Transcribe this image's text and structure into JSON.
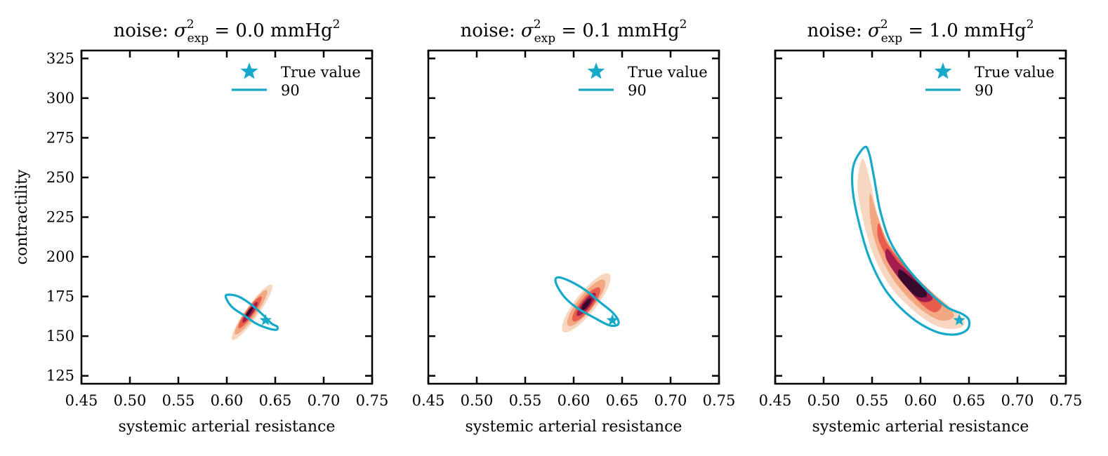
{
  "chart_data": [
    {
      "type": "contour",
      "title_prefix": "noise: ",
      "title_symbol": "σ",
      "title_sup": "2",
      "title_sub": "exp",
      "title_mid": " = 0.0 mmHg",
      "title_unit_sup": "2",
      "xlabel": "systemic arterial resistance",
      "ylabel": "contractility",
      "xlim": [
        0.45,
        0.75
      ],
      "ylim": [
        120,
        330
      ],
      "xticks": [
        "0.45",
        "0.50",
        "0.55",
        "0.60",
        "0.65",
        "0.70",
        "0.75"
      ],
      "yticks": [
        "125",
        "150",
        "175",
        "200",
        "225",
        "250",
        "275",
        "300",
        "325"
      ],
      "legend": {
        "placement": "top-right",
        "entries": [
          "True value",
          "90"
        ]
      },
      "true_value": {
        "x": 0.64,
        "y": 160
      },
      "hdr_90_outline": [
        [
          0.6,
          176
        ],
        [
          0.612,
          175
        ],
        [
          0.625,
          170
        ],
        [
          0.638,
          163
        ],
        [
          0.646,
          158
        ],
        [
          0.652,
          156
        ],
        [
          0.651,
          154
        ],
        [
          0.642,
          155
        ],
        [
          0.63,
          158
        ],
        [
          0.618,
          163
        ],
        [
          0.606,
          168
        ],
        [
          0.6,
          173
        ]
      ],
      "levels": [
        {
          "color": "#f7d7c2",
          "cx": 0.626,
          "cy": 165,
          "a": 0.035,
          "b": 4,
          "angle": -0.95
        },
        {
          "color": "#f3a882",
          "cx": 0.625,
          "cy": 165,
          "a": 0.028,
          "b": 3.2,
          "angle": -0.95
        },
        {
          "color": "#e85d4b",
          "cx": 0.624,
          "cy": 165,
          "a": 0.02,
          "b": 2.4,
          "angle": -0.95
        },
        {
          "color": "#a51d4f",
          "cx": 0.624,
          "cy": 165,
          "a": 0.013,
          "b": 1.6,
          "angle": -0.95
        },
        {
          "color": "#3a0a2e",
          "cx": 0.623,
          "cy": 165,
          "a": 0.007,
          "b": 1.0,
          "angle": -0.95
        }
      ]
    },
    {
      "type": "contour",
      "title_prefix": "noise: ",
      "title_symbol": "σ",
      "title_sup": "2",
      "title_sub": "exp",
      "title_mid": " = 0.1 mmHg",
      "title_unit_sup": "2",
      "xlabel": "systemic arterial resistance",
      "ylabel": "",
      "xlim": [
        0.45,
        0.75
      ],
      "ylim": [
        120,
        330
      ],
      "xticks": [
        "0.45",
        "0.50",
        "0.55",
        "0.60",
        "0.65",
        "0.70",
        "0.75"
      ],
      "yticks": [],
      "legend": {
        "placement": "top-right",
        "entries": [
          "True value",
          "90"
        ]
      },
      "true_value": {
        "x": 0.64,
        "y": 160
      },
      "hdr_90_outline": [
        [
          0.583,
          187
        ],
        [
          0.595,
          185
        ],
        [
          0.612,
          179
        ],
        [
          0.628,
          171
        ],
        [
          0.64,
          165
        ],
        [
          0.646,
          160
        ],
        [
          0.645,
          157
        ],
        [
          0.636,
          157
        ],
        [
          0.62,
          162
        ],
        [
          0.603,
          168
        ],
        [
          0.59,
          175
        ],
        [
          0.582,
          183
        ]
      ],
      "levels": [
        {
          "color": "#f7d7c2",
          "cx": 0.613,
          "cy": 171,
          "a": 0.038,
          "b": 6.5,
          "angle": -0.9
        },
        {
          "color": "#f3a882",
          "cx": 0.613,
          "cy": 171,
          "a": 0.03,
          "b": 5.0,
          "angle": -0.9
        },
        {
          "color": "#e85d4b",
          "cx": 0.613,
          "cy": 170,
          "a": 0.022,
          "b": 3.8,
          "angle": -0.9
        },
        {
          "color": "#a51d4f",
          "cx": 0.613,
          "cy": 170,
          "a": 0.015,
          "b": 2.6,
          "angle": -0.9
        },
        {
          "color": "#3a0a2e",
          "cx": 0.613,
          "cy": 170,
          "a": 0.008,
          "b": 1.5,
          "angle": -0.9
        }
      ]
    },
    {
      "type": "contour",
      "title_prefix": "noise: ",
      "title_symbol": "σ",
      "title_sup": "2",
      "title_sub": "exp",
      "title_mid": " = 1.0 mmHg",
      "title_unit_sup": "2",
      "xlabel": "systemic arterial resistance",
      "ylabel": "",
      "xlim": [
        0.45,
        0.75
      ],
      "ylim": [
        120,
        330
      ],
      "xticks": [
        "0.45",
        "0.50",
        "0.55",
        "0.60",
        "0.65",
        "0.70",
        "0.75"
      ],
      "yticks": [],
      "legend": {
        "placement": "top-right",
        "entries": [
          "True value",
          "90"
        ]
      },
      "true_value": {
        "x": 0.64,
        "y": 160
      },
      "hdr_90_outline": [
        [
          0.542,
          269
        ],
        [
          0.547,
          265
        ],
        [
          0.552,
          250
        ],
        [
          0.558,
          230
        ],
        [
          0.567,
          212
        ],
        [
          0.578,
          200
        ],
        [
          0.593,
          188
        ],
        [
          0.61,
          177
        ],
        [
          0.628,
          168
        ],
        [
          0.643,
          164
        ],
        [
          0.65,
          160
        ],
        [
          0.648,
          154
        ],
        [
          0.635,
          151
        ],
        [
          0.615,
          153
        ],
        [
          0.59,
          162
        ],
        [
          0.565,
          178
        ],
        [
          0.548,
          198
        ],
        [
          0.537,
          220
        ],
        [
          0.53,
          242
        ],
        [
          0.531,
          258
        ]
      ],
      "levels": [
        {
          "color": "#f7d7c2",
          "path": [
            [
              0.54,
              262
            ],
            [
              0.548,
              248
            ],
            [
              0.555,
              228
            ],
            [
              0.566,
              210
            ],
            [
              0.58,
              197
            ],
            [
              0.598,
              185
            ],
            [
              0.617,
              174
            ],
            [
              0.635,
              166
            ],
            [
              0.645,
              160
            ],
            [
              0.64,
              155
            ],
            [
              0.618,
              156
            ],
            [
              0.593,
              166
            ],
            [
              0.568,
              182
            ],
            [
              0.551,
              202
            ],
            [
              0.54,
              225
            ],
            [
              0.535,
              245
            ]
          ]
        },
        {
          "color": "#f3a882",
          "path": [
            [
              0.548,
              240
            ],
            [
              0.556,
              225
            ],
            [
              0.566,
              210
            ],
            [
              0.58,
              198
            ],
            [
              0.598,
              186
            ],
            [
              0.615,
              176
            ],
            [
              0.63,
              168
            ],
            [
              0.634,
              162
            ],
            [
              0.62,
              160
            ],
            [
              0.598,
              168
            ],
            [
              0.575,
              183
            ],
            [
              0.559,
              200
            ],
            [
              0.549,
              220
            ]
          ]
        },
        {
          "color": "#e85d4b",
          "path": [
            [
              0.557,
              221
            ],
            [
              0.565,
              209
            ],
            [
              0.58,
              197
            ],
            [
              0.597,
              186
            ],
            [
              0.612,
              177
            ],
            [
              0.622,
              170
            ],
            [
              0.614,
              165
            ],
            [
              0.598,
              172
            ],
            [
              0.58,
              186
            ],
            [
              0.565,
              200
            ],
            [
              0.556,
              212
            ]
          ]
        },
        {
          "color": "#a51d4f",
          "path": [
            [
              0.566,
              205
            ],
            [
              0.578,
              196
            ],
            [
              0.594,
              187
            ],
            [
              0.608,
              179
            ],
            [
              0.612,
              173
            ],
            [
              0.6,
              172
            ],
            [
              0.585,
              181
            ],
            [
              0.571,
              192
            ],
            [
              0.564,
              200
            ]
          ]
        },
        {
          "color": "#3a0a2e",
          "path": [
            [
              0.579,
              192
            ],
            [
              0.592,
              186
            ],
            [
              0.604,
              180
            ],
            [
              0.606,
              175
            ],
            [
              0.596,
              175
            ],
            [
              0.584,
              182
            ],
            [
              0.577,
              188
            ]
          ]
        }
      ]
    }
  ],
  "colors": {
    "accent": "#17a9c8",
    "frame": "#000000"
  }
}
